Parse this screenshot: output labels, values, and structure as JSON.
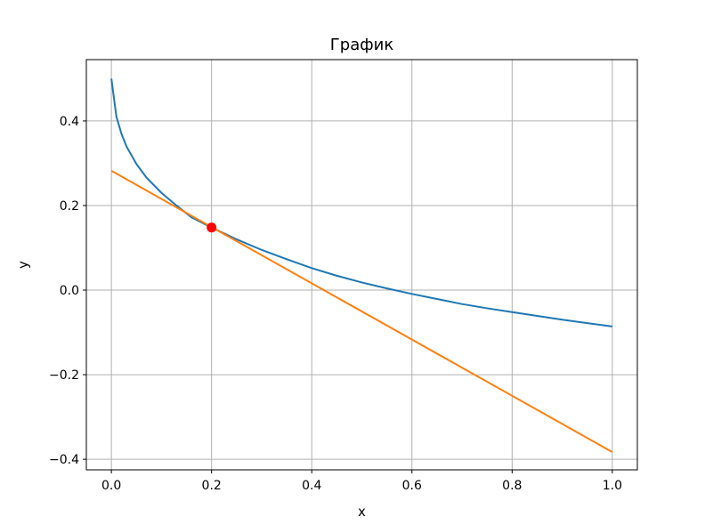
{
  "chart_data": {
    "type": "line",
    "title": "График",
    "xlabel": "x",
    "ylabel": "y",
    "xlim": [
      -0.05,
      1.05
    ],
    "ylim": [
      -0.425,
      0.545
    ],
    "grid": true,
    "xticks": [
      0.0,
      0.2,
      0.4,
      0.6,
      0.8,
      1.0
    ],
    "xtick_labels": [
      "0.0",
      "0.2",
      "0.4",
      "0.6",
      "0.8",
      "1.0"
    ],
    "yticks": [
      -0.4,
      -0.2,
      0.0,
      0.2,
      0.4
    ],
    "ytick_labels": [
      "−0.4",
      "−0.2",
      "0.0",
      "0.2",
      "0.4"
    ],
    "series": [
      {
        "color": "#1f77b4",
        "x": [
          0.0,
          0.01,
          0.02,
          0.03,
          0.05,
          0.07,
          0.1,
          0.13,
          0.16,
          0.2,
          0.25,
          0.3,
          0.35,
          0.4,
          0.45,
          0.5,
          0.55,
          0.6,
          0.65,
          0.7,
          0.75,
          0.8,
          0.85,
          0.9,
          0.95,
          1.0
        ],
        "y": [
          0.5,
          0.41,
          0.37,
          0.34,
          0.298,
          0.266,
          0.23,
          0.2,
          0.172,
          0.148,
          0.12,
          0.095,
          0.073,
          0.052,
          0.034,
          0.018,
          0.004,
          -0.009,
          -0.021,
          -0.033,
          -0.043,
          -0.052,
          -0.061,
          -0.07,
          -0.078,
          -0.086
        ]
      },
      {
        "color": "#ff7f0e",
        "x": [
          0.0,
          1.0
        ],
        "y": [
          0.282,
          -0.383
        ]
      }
    ],
    "points": [
      {
        "x": 0.2,
        "y": 0.148,
        "color": "#ff0000"
      }
    ]
  }
}
